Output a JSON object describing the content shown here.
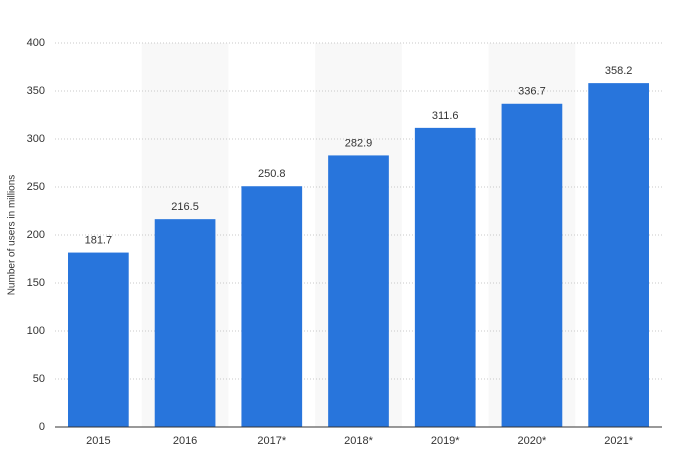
{
  "chart_data": {
    "type": "bar",
    "y_label": "Number of users in millions",
    "categories": [
      "2015",
      "2016",
      "2017*",
      "2018*",
      "2019*",
      "2020*",
      "2021*"
    ],
    "values": [
      181.7,
      216.5,
      250.8,
      282.9,
      311.6,
      336.7,
      358.2
    ],
    "color": "#2875dc",
    "ylim": [
      0,
      400
    ],
    "yticks": [
      0,
      50,
      100,
      150,
      200,
      250,
      300,
      350,
      400
    ],
    "grid": true
  }
}
